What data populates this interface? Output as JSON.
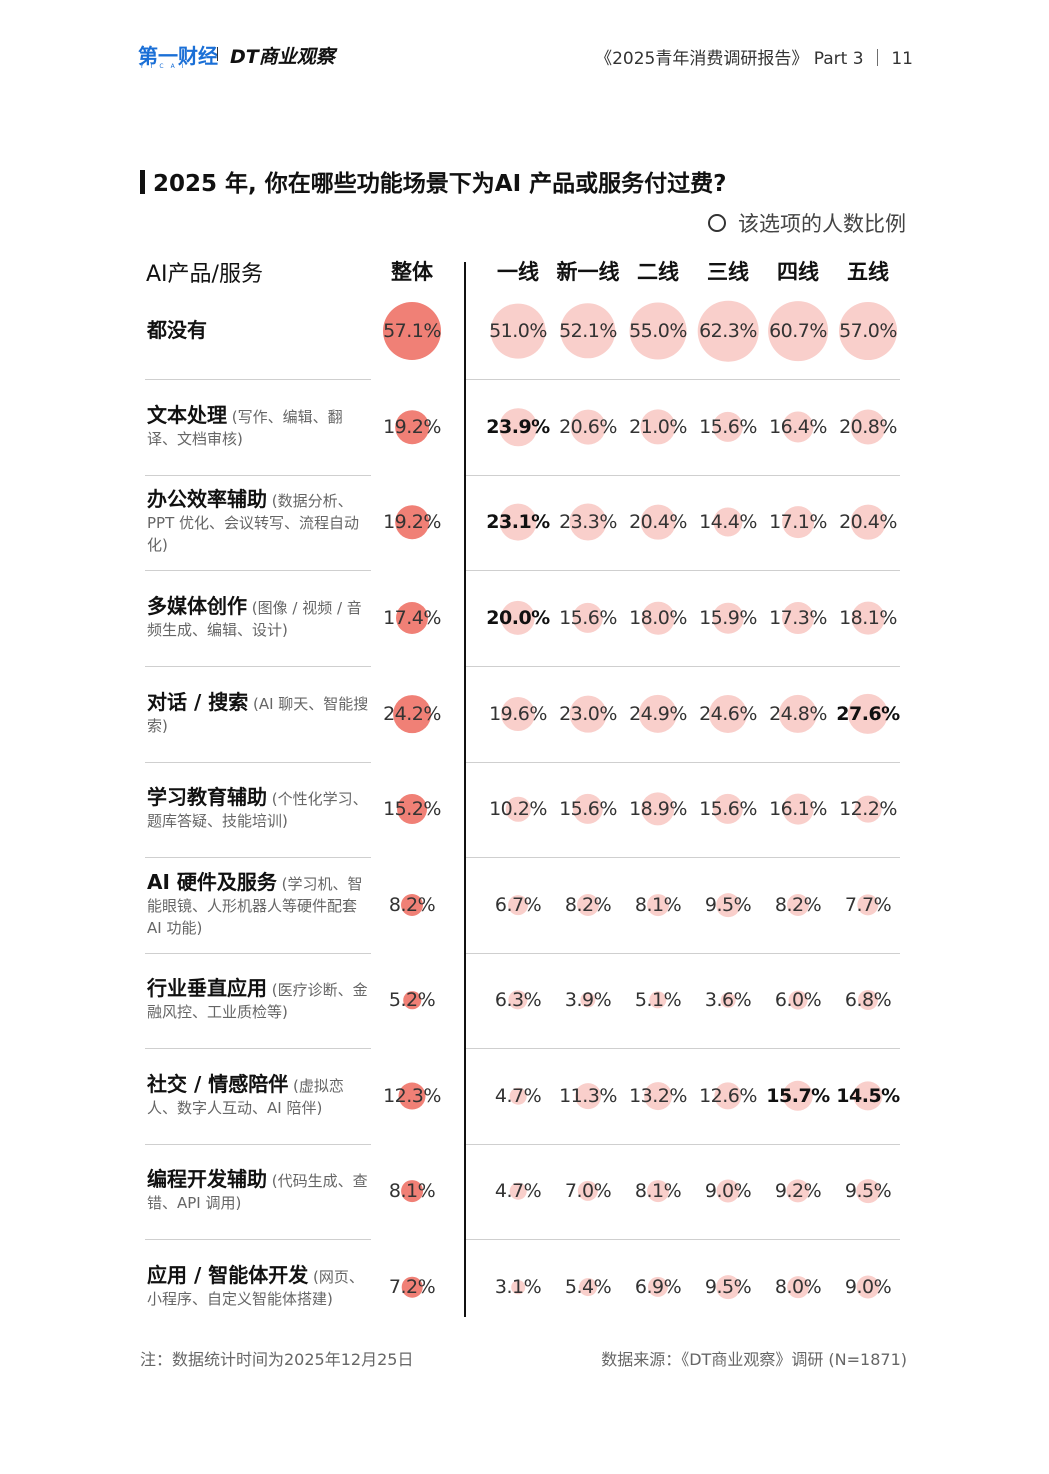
{
  "header": {
    "logo_main": "第一财经",
    "logo_sub": "YICAI",
    "logo_dt": "DT商业观察",
    "report_title": "《2025青年消费调研报告》 Part 3 ｜ 11"
  },
  "colors": {
    "overall_bubble": "#f08076",
    "tier_bubble": "#f9cfcb",
    "divider": "#cfcfcf"
  },
  "chart_data": {
    "type": "table",
    "title": "2025 年, 你在哪些功能场景下为AI 产品或服务付过费?",
    "legend": "该选项的人数比例",
    "row_header": "AI产品/服务",
    "columns": [
      "整体",
      "一线",
      "新一线",
      "二线",
      "三线",
      "四线",
      "五线"
    ],
    "rows": [
      {
        "label": "都没有",
        "sub": "",
        "values": [
          "57.1%",
          "51.0%",
          "52.1%",
          "55.0%",
          "62.3%",
          "60.7%",
          "57.0%"
        ],
        "bold": []
      },
      {
        "label": "文本处理",
        "sub": "(写作、编辑、翻译、文档审核)",
        "values": [
          "19.2%",
          "23.9%",
          "20.6%",
          "21.0%",
          "15.6%",
          "16.4%",
          "20.8%"
        ],
        "bold": [
          1
        ]
      },
      {
        "label": "办公效率辅助",
        "sub": "(数据分析、PPT 优化、会议转写、流程自动化)",
        "values": [
          "19.2%",
          "23.1%",
          "23.3%",
          "20.4%",
          "14.4%",
          "17.1%",
          "20.4%"
        ],
        "bold": [
          1
        ]
      },
      {
        "label": "多媒体创作",
        "sub": "(图像 / 视频 / 音频生成、编辑、设计)",
        "values": [
          "17.4%",
          "20.0%",
          "15.6%",
          "18.0%",
          "15.9%",
          "17.3%",
          "18.1%"
        ],
        "bold": [
          1
        ]
      },
      {
        "label": "对话 / 搜索",
        "sub": "(AI 聊天、智能搜索)",
        "values": [
          "24.2%",
          "19.6%",
          "23.0%",
          "24.9%",
          "24.6%",
          "24.8%",
          "27.6%"
        ],
        "bold": [
          6
        ]
      },
      {
        "label": "学习教育辅助",
        "sub": "(个性化学习、题库答疑、技能培训)",
        "values": [
          "15.2%",
          "10.2%",
          "15.6%",
          "18.9%",
          "15.6%",
          "16.1%",
          "12.2%"
        ],
        "bold": []
      },
      {
        "label": "AI 硬件及服务",
        "sub": "(学习机、智能眼镜、人形机器人等硬件配套 AI 功能)",
        "values": [
          "8.2%",
          "6.7%",
          "8.2%",
          "8.1%",
          "9.5%",
          "8.2%",
          "7.7%"
        ],
        "bold": []
      },
      {
        "label": "行业垂直应用",
        "sub": "(医疗诊断、金融风控、工业质检等)",
        "values": [
          "5.2%",
          "6.3%",
          "3.9%",
          "5.1%",
          "3.6%",
          "6.0%",
          "6.8%"
        ],
        "bold": []
      },
      {
        "label": "社交 / 情感陪伴",
        "sub": "(虚拟恋人、数字人互动、AI 陪伴)",
        "values": [
          "12.3%",
          "4.7%",
          "11.3%",
          "13.2%",
          "12.6%",
          "15.7%",
          "14.5%"
        ],
        "bold": [
          5,
          6
        ]
      },
      {
        "label": "编程开发辅助",
        "sub": "(代码生成、查错、API 调用)",
        "values": [
          "8.1%",
          "4.7%",
          "7.0%",
          "8.1%",
          "9.0%",
          "9.2%",
          "9.5%"
        ],
        "bold": []
      },
      {
        "label": "应用 / 智能体开发",
        "sub": "(网页、小程序、自定义智能体搭建)",
        "values": [
          "7.2%",
          "3.1%",
          "5.4%",
          "6.9%",
          "9.5%",
          "8.0%",
          "9.0%"
        ],
        "bold": []
      }
    ]
  },
  "footer": {
    "note": "注：数据统计时间为2025年12月25日",
    "source": "数据来源：《DT商业观察》调研 (N=1871)"
  }
}
